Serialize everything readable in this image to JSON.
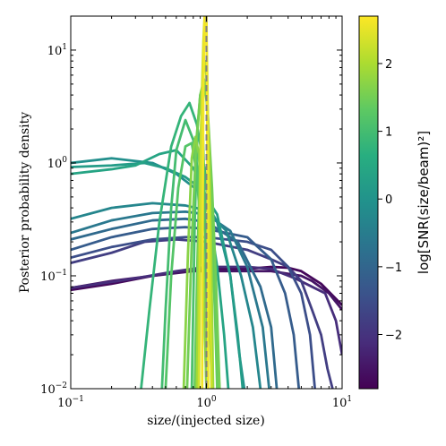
{
  "chart_data": {
    "type": "line",
    "xlabel": "size/(injected size)",
    "ylabel": "Posterior probability density",
    "xscale": "log",
    "yscale": "log",
    "xlim": [
      0.1,
      10
    ],
    "ylim": [
      0.01,
      20
    ],
    "x_ticks": [
      {
        "value": 0.1,
        "base": "10",
        "exp": "−1"
      },
      {
        "value": 1,
        "base": "10",
        "exp": "0"
      },
      {
        "value": 10,
        "base": "10",
        "exp": "1"
      }
    ],
    "y_ticks": [
      {
        "value": 0.01,
        "base": "10",
        "exp": "−2"
      },
      {
        "value": 0.1,
        "base": "10",
        "exp": "−1"
      },
      {
        "value": 1,
        "base": "10",
        "exp": "0"
      },
      {
        "value": 10,
        "base": "10",
        "exp": "1"
      }
    ],
    "reference_line": {
      "x": 1,
      "style": "dashed",
      "color": "#808080"
    },
    "colorbar": {
      "label": "log[SNR(size/beam)²]",
      "range": [
        -2.8,
        2.7
      ],
      "ticks": [
        {
          "value": -2,
          "label": "−2"
        },
        {
          "value": -1,
          "label": "−1"
        },
        {
          "value": 0,
          "label": "0"
        },
        {
          "value": 1,
          "label": "1"
        },
        {
          "value": 2,
          "label": "2"
        }
      ],
      "colormap": "viridis"
    },
    "series": [
      {
        "c": -2.7,
        "points": [
          [
            0.1,
            0.075
          ],
          [
            0.2,
            0.085
          ],
          [
            0.4,
            0.1
          ],
          [
            0.7,
            0.11
          ],
          [
            1.0,
            0.115
          ],
          [
            2,
            0.115
          ],
          [
            3,
            0.12
          ],
          [
            4,
            0.118
          ],
          [
            5,
            0.11
          ],
          [
            7,
            0.085
          ],
          [
            10,
            0.055
          ]
        ]
      },
      {
        "c": -2.5,
        "points": [
          [
            0.1,
            0.078
          ],
          [
            0.2,
            0.09
          ],
          [
            0.4,
            0.1
          ],
          [
            0.8,
            0.11
          ],
          [
            1.5,
            0.11
          ],
          [
            3,
            0.11
          ],
          [
            5,
            0.1
          ],
          [
            6,
            0.09
          ],
          [
            8,
            0.07
          ],
          [
            10,
            0.05
          ]
        ]
      },
      {
        "c": -2.1,
        "points": [
          [
            0.1,
            0.078
          ],
          [
            0.3,
            0.095
          ],
          [
            0.6,
            0.11
          ],
          [
            1,
            0.12
          ],
          [
            2,
            0.12
          ],
          [
            3,
            0.115
          ],
          [
            4.5,
            0.095
          ],
          [
            6,
            0.08
          ],
          [
            7.5,
            0.07
          ],
          [
            9,
            0.04
          ],
          [
            10,
            0.02
          ]
        ]
      },
      {
        "c": -1.8,
        "points": [
          [
            0.1,
            0.13
          ],
          [
            0.2,
            0.16
          ],
          [
            0.35,
            0.2
          ],
          [
            0.6,
            0.21
          ],
          [
            1,
            0.2
          ],
          [
            2,
            0.17
          ],
          [
            3,
            0.14
          ],
          [
            4,
            0.12
          ],
          [
            5,
            0.09
          ],
          [
            6,
            0.05
          ],
          [
            7,
            0.03
          ],
          [
            7.8,
            0.015
          ],
          [
            8.5,
            0.01
          ]
        ]
      },
      {
        "c": -1.5,
        "points": [
          [
            0.1,
            0.145
          ],
          [
            0.2,
            0.18
          ],
          [
            0.4,
            0.21
          ],
          [
            0.7,
            0.22
          ],
          [
            1,
            0.22
          ],
          [
            2,
            0.2
          ],
          [
            3,
            0.17
          ],
          [
            4,
            0.12
          ],
          [
            5,
            0.07
          ],
          [
            5.8,
            0.03
          ],
          [
            6.3,
            0.01
          ]
        ]
      },
      {
        "c": -1.2,
        "points": [
          [
            0.1,
            0.17
          ],
          [
            0.2,
            0.22
          ],
          [
            0.4,
            0.26
          ],
          [
            0.7,
            0.27
          ],
          [
            1,
            0.26
          ],
          [
            2,
            0.22
          ],
          [
            3,
            0.14
          ],
          [
            3.8,
            0.07
          ],
          [
            4.4,
            0.03
          ],
          [
            4.8,
            0.01
          ]
        ]
      },
      {
        "c": -0.9,
        "points": [
          [
            0.1,
            0.21
          ],
          [
            0.2,
            0.26
          ],
          [
            0.4,
            0.31
          ],
          [
            0.7,
            0.32
          ],
          [
            1,
            0.3
          ],
          [
            1.7,
            0.2
          ],
          [
            2.5,
            0.08
          ],
          [
            3,
            0.035
          ],
          [
            3.3,
            0.01
          ]
        ]
      },
      {
        "c": -0.6,
        "points": [
          [
            0.1,
            0.24
          ],
          [
            0.2,
            0.31
          ],
          [
            0.4,
            0.36
          ],
          [
            0.7,
            0.37
          ],
          [
            1,
            0.35
          ],
          [
            1.5,
            0.25
          ],
          [
            2,
            0.12
          ],
          [
            2.6,
            0.035
          ],
          [
            2.9,
            0.01
          ]
        ]
      },
      {
        "c": -0.3,
        "points": [
          [
            0.1,
            0.32
          ],
          [
            0.2,
            0.4
          ],
          [
            0.4,
            0.44
          ],
          [
            0.7,
            0.42
          ],
          [
            1,
            0.38
          ],
          [
            1.4,
            0.25
          ],
          [
            1.8,
            0.1
          ],
          [
            2.2,
            0.035
          ],
          [
            2.5,
            0.01
          ]
        ]
      },
      {
        "c": 0.2,
        "points": [
          [
            0.1,
            0.92
          ],
          [
            0.2,
            0.95
          ],
          [
            0.35,
            1.0
          ],
          [
            0.5,
            0.9
          ],
          [
            0.7,
            0.75
          ],
          [
            0.9,
            0.6
          ],
          [
            1.2,
            0.35
          ],
          [
            1.5,
            0.1
          ],
          [
            1.7,
            0.03
          ],
          [
            1.85,
            0.01
          ]
        ]
      },
      {
        "c": -0.1,
        "points": [
          [
            0.1,
            1.0
          ],
          [
            0.2,
            1.1
          ],
          [
            0.4,
            1.0
          ],
          [
            0.6,
            0.8
          ],
          [
            0.9,
            0.55
          ],
          [
            1.2,
            0.3
          ],
          [
            1.5,
            0.1
          ],
          [
            1.75,
            0.02
          ],
          [
            1.9,
            0.01
          ]
        ]
      },
      {
        "c": 0.4,
        "points": [
          [
            0.1,
            0.8
          ],
          [
            0.2,
            0.88
          ],
          [
            0.3,
            0.95
          ],
          [
            0.45,
            1.2
          ],
          [
            0.6,
            1.3
          ],
          [
            0.8,
            0.9
          ],
          [
            1.0,
            0.5
          ],
          [
            1.2,
            0.12
          ],
          [
            1.35,
            0.03
          ],
          [
            1.45,
            0.01
          ]
        ]
      },
      {
        "c": 0.8,
        "points": [
          [
            0.33,
            0.01
          ],
          [
            0.38,
            0.05
          ],
          [
            0.45,
            0.3
          ],
          [
            0.55,
            1.4
          ],
          [
            0.65,
            2.6
          ],
          [
            0.75,
            3.4
          ],
          [
            0.85,
            2.2
          ],
          [
            1.0,
            0.7
          ],
          [
            1.12,
            0.12
          ],
          [
            1.2,
            0.02
          ],
          [
            1.25,
            0.01
          ]
        ]
      },
      {
        "c": 1.0,
        "points": [
          [
            0.47,
            0.01
          ],
          [
            0.5,
            0.05
          ],
          [
            0.55,
            0.4
          ],
          [
            0.6,
            1.3
          ],
          [
            0.7,
            2.4
          ],
          [
            0.8,
            1.6
          ],
          [
            0.9,
            0.6
          ],
          [
            1.0,
            0.2
          ],
          [
            1.05,
            0.05
          ],
          [
            1.1,
            0.01
          ]
        ]
      },
      {
        "c": 1.2,
        "points": [
          [
            0.5,
            0.01
          ],
          [
            0.55,
            0.1
          ],
          [
            0.62,
            0.6
          ],
          [
            0.7,
            1.4
          ],
          [
            0.78,
            1.5
          ],
          [
            0.85,
            0.8
          ],
          [
            0.92,
            0.2
          ],
          [
            0.97,
            0.04
          ],
          [
            1.0,
            0.01
          ]
        ]
      },
      {
        "c": 1.7,
        "points": [
          [
            0.68,
            0.01
          ],
          [
            0.73,
            0.15
          ],
          [
            0.78,
            1.1
          ],
          [
            0.83,
            1.7
          ],
          [
            0.88,
            1.2
          ],
          [
            0.93,
            0.3
          ],
          [
            0.97,
            0.05
          ],
          [
            1.0,
            0.01
          ]
        ]
      },
      {
        "c": 1.5,
        "points": [
          [
            0.72,
            0.01
          ],
          [
            0.78,
            0.2
          ],
          [
            0.84,
            1.5
          ],
          [
            0.9,
            4.0
          ],
          [
            0.96,
            5.5
          ],
          [
            1.02,
            3.0
          ],
          [
            1.1,
            0.6
          ],
          [
            1.18,
            0.08
          ],
          [
            1.25,
            0.01
          ]
        ]
      },
      {
        "c": 1.4,
        "points": [
          [
            0.82,
            0.01
          ],
          [
            0.86,
            0.15
          ],
          [
            0.9,
            1.3
          ],
          [
            0.95,
            4.5
          ],
          [
            1.0,
            4.0
          ],
          [
            1.05,
            1.2
          ],
          [
            1.1,
            0.25
          ],
          [
            1.16,
            0.04
          ],
          [
            1.2,
            0.01
          ]
        ]
      },
      {
        "c": 1.9,
        "points": [
          [
            0.85,
            0.01
          ],
          [
            0.88,
            0.2
          ],
          [
            0.91,
            1.8
          ],
          [
            0.94,
            6.0
          ],
          [
            0.97,
            8.0
          ],
          [
            1.0,
            6.0
          ],
          [
            1.04,
            1.5
          ],
          [
            1.08,
            0.2
          ],
          [
            1.12,
            0.01
          ]
        ]
      },
      {
        "c": 1.1,
        "points": [
          [
            0.78,
            0.01
          ],
          [
            0.82,
            0.3
          ],
          [
            0.86,
            2.0
          ],
          [
            0.9,
            4.0
          ],
          [
            0.94,
            2.0
          ],
          [
            0.97,
            0.5
          ],
          [
            1.0,
            0.05
          ],
          [
            1.02,
            0.01
          ]
        ]
      },
      {
        "c": 2.3,
        "points": [
          [
            0.88,
            0.01
          ],
          [
            0.9,
            0.3
          ],
          [
            0.92,
            3.0
          ],
          [
            0.95,
            12.0
          ],
          [
            0.97,
            20.0
          ],
          [
            0.99,
            20.0
          ],
          [
            1.01,
            8.0
          ],
          [
            1.04,
            0.8
          ],
          [
            1.07,
            0.05
          ],
          [
            1.09,
            0.01
          ]
        ]
      },
      {
        "c": 2.6,
        "points": [
          [
            0.93,
            0.01
          ],
          [
            0.94,
            0.5
          ],
          [
            0.95,
            5.0
          ],
          [
            0.97,
            20.0
          ],
          [
            0.98,
            20.0
          ],
          [
            0.99,
            20.0
          ],
          [
            1.0,
            20.0
          ],
          [
            1.01,
            6.0
          ],
          [
            1.02,
            0.5
          ],
          [
            1.03,
            0.01
          ]
        ]
      }
    ]
  }
}
